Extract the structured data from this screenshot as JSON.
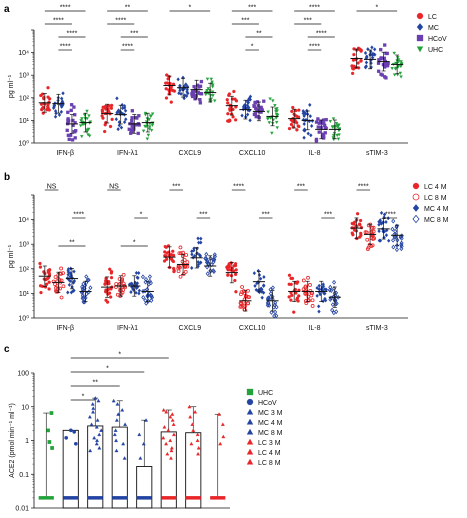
{
  "chart_data": [
    {
      "panel": "a",
      "type": "scatter",
      "ylabel": "pg ml⁻¹",
      "yscale": "log",
      "ylim": [
        1,
        100000
      ],
      "yticks": [
        "10⁰",
        "10¹",
        "10²",
        "10³",
        "10⁴"
      ],
      "categories": [
        "IFN-β",
        "IFN-λ1",
        "CXCL9",
        "CXCL10",
        "IL-8",
        "sTIM-3"
      ],
      "legend": "right",
      "series": [
        {
          "name": "LC",
          "color": "#e8262a",
          "marker": "circle",
          "values": [
            60,
            20,
            350,
            45,
            12,
            5500
          ]
        },
        {
          "name": "MC",
          "color": "#2444a3",
          "marker": "diamond",
          "values": [
            55,
            18,
            280,
            30,
            10,
            5000
          ]
        },
        {
          "name": "HCoV",
          "color": "#6a3fb0",
          "marker": "square",
          "values": [
            7,
            7,
            230,
            25,
            4,
            4000
          ]
        },
        {
          "name": "UHC",
          "color": "#22a23a",
          "marker": "triangle-down",
          "values": [
            8,
            8,
            170,
            15,
            4,
            3000
          ]
        }
      ],
      "significance": [
        {
          "label": "****",
          "group": 0,
          "pair": [
            0,
            3
          ]
        },
        {
          "label": "****",
          "group": 0,
          "pair": [
            0,
            2
          ]
        },
        {
          "label": "****",
          "group": 0,
          "pair": [
            1,
            3
          ]
        },
        {
          "label": "****",
          "group": 0,
          "pair": [
            1,
            2
          ]
        },
        {
          "label": "**",
          "group": 1,
          "pair": [
            0,
            3
          ]
        },
        {
          "label": "****",
          "group": 1,
          "pair": [
            0,
            2
          ]
        },
        {
          "label": "***",
          "group": 1,
          "pair": [
            1,
            3
          ]
        },
        {
          "label": "****",
          "group": 1,
          "pair": [
            1,
            2
          ]
        },
        {
          "label": "*",
          "group": 2,
          "pair": [
            0,
            3
          ]
        },
        {
          "label": "***",
          "group": 3,
          "pair": [
            0,
            3
          ]
        },
        {
          "label": "***",
          "group": 3,
          "pair": [
            0,
            2
          ]
        },
        {
          "label": "**",
          "group": 3,
          "pair": [
            1,
            3
          ]
        },
        {
          "label": "*",
          "group": 3,
          "pair": [
            1,
            2
          ]
        },
        {
          "label": "****",
          "group": 4,
          "pair": [
            0,
            3
          ]
        },
        {
          "label": "***",
          "group": 4,
          "pair": [
            0,
            2
          ]
        },
        {
          "label": "****",
          "group": 4,
          "pair": [
            1,
            3
          ]
        },
        {
          "label": "****",
          "group": 4,
          "pair": [
            1,
            2
          ]
        },
        {
          "label": "*",
          "group": 5,
          "pair": [
            0,
            3
          ]
        }
      ]
    },
    {
      "panel": "b",
      "type": "scatter",
      "ylabel": "pg ml⁻¹",
      "yscale": "log",
      "ylim": [
        1,
        100000
      ],
      "yticks": [
        "10⁰",
        "10¹",
        "10²",
        "10³",
        "10⁴"
      ],
      "categories": [
        "IFN-β",
        "IFN-λ1",
        "CXCL9",
        "CXCL10",
        "IL-8",
        "sTIM-3"
      ],
      "legend": "right",
      "series": [
        {
          "name": "LC 4 M",
          "color": "#e8262a",
          "marker": "circle",
          "values": [
            50,
            18,
            300,
            70,
            12,
            4500
          ]
        },
        {
          "name": "LC 8 M",
          "color": "#e8262a",
          "marker": "circle-open",
          "values": [
            28,
            20,
            150,
            5,
            12,
            2500
          ]
        },
        {
          "name": "MC 4 M",
          "color": "#2444a3",
          "marker": "diamond",
          "values": [
            40,
            20,
            280,
            30,
            12,
            4200
          ]
        },
        {
          "name": "MC 8 M",
          "color": "#2444a3",
          "marker": "diamond-open",
          "values": [
            12,
            12,
            130,
            5,
            7,
            2300
          ]
        }
      ],
      "significance": [
        {
          "label": "NS",
          "group": 0,
          "pair": [
            0,
            1
          ]
        },
        {
          "label": "****",
          "group": 0,
          "pair": [
            2,
            3
          ]
        },
        {
          "label": "**",
          "group": 0,
          "pair": [
            1,
            3
          ]
        },
        {
          "label": "NS",
          "group": 1,
          "pair": [
            0,
            1
          ]
        },
        {
          "label": "*",
          "group": 1,
          "pair": [
            2,
            3
          ]
        },
        {
          "label": "*",
          "group": 1,
          "pair": [
            1,
            3
          ]
        },
        {
          "label": "***",
          "group": 2,
          "pair": [
            0,
            1
          ]
        },
        {
          "label": "***",
          "group": 2,
          "pair": [
            2,
            3
          ]
        },
        {
          "label": "****",
          "group": 3,
          "pair": [
            0,
            1
          ]
        },
        {
          "label": "***",
          "group": 3,
          "pair": [
            2,
            3
          ]
        },
        {
          "label": "***",
          "group": 4,
          "pair": [
            0,
            1
          ]
        },
        {
          "label": "***",
          "group": 4,
          "pair": [
            2,
            3
          ]
        },
        {
          "label": "****",
          "group": 5,
          "pair": [
            0,
            1
          ]
        },
        {
          "label": "****",
          "group": 5,
          "pair": [
            2,
            3
          ]
        }
      ]
    },
    {
      "panel": "c",
      "type": "bar",
      "ylabel": "ACE2 (pmol min⁻¹ ml⁻¹)",
      "yscale": "log",
      "ylim": [
        0.01,
        100
      ],
      "yticks": [
        "0.01",
        "0.1",
        "1",
        "10",
        "100"
      ],
      "legend": "right",
      "categories": [
        "UHC",
        "HCoV",
        "MC 3 M",
        "MC 4 M",
        "MC 8 M",
        "LC 3 M",
        "LC 4 M",
        "LC 8 M"
      ],
      "series": [
        {
          "name": "UHC",
          "color": "#22a23a",
          "marker": "square",
          "median": 0.02,
          "upper": 0.02,
          "high_points": [
            6.5,
            2.0,
            0.9,
            0.6
          ]
        },
        {
          "name": "HCoV",
          "color": "#2444a3",
          "marker": "circle",
          "median": 0.02,
          "upper": 2.0,
          "high_points": [
            2.0,
            1.8,
            1.2,
            0.8
          ]
        },
        {
          "name": "MC 3 M",
          "color": "#2444a3",
          "marker": "triangle-up",
          "median": 0.02,
          "upper": 2.7,
          "high_points": [
            18,
            15,
            12,
            9,
            7,
            5,
            4,
            3,
            2.5,
            2,
            1.5,
            1.2,
            1,
            0.8,
            0.6,
            0.5
          ]
        },
        {
          "name": "MC 4 M",
          "color": "#2444a3",
          "marker": "triangle-up",
          "median": 0.02,
          "upper": 2.5,
          "high_points": [
            15,
            12,
            8,
            6,
            4,
            3,
            2,
            1.5,
            1,
            0.8,
            0.5,
            0.3
          ]
        },
        {
          "name": "MC 8 M",
          "color": "#2444a3",
          "marker": "triangle-up",
          "median": 0.02,
          "upper": 0.17,
          "high_points": [
            4,
            1.5,
            0.8,
            0.3
          ]
        },
        {
          "name": "LC 3 M",
          "color": "#e8262a",
          "marker": "triangle-up",
          "median": 0.02,
          "upper": 1.8,
          "high_points": [
            8,
            7,
            6,
            5,
            4,
            3,
            2.5,
            2,
            1.5,
            1.2,
            1,
            0.8,
            0.6,
            0.5,
            0.4,
            0.3
          ]
        },
        {
          "name": "LC 4 M",
          "color": "#e8262a",
          "marker": "triangle-up",
          "median": 0.02,
          "upper": 1.7,
          "high_points": [
            10,
            7,
            5,
            3,
            2,
            1.5,
            1,
            0.8,
            0.6,
            0.4
          ]
        },
        {
          "name": "LC 8 M",
          "color": "#e8262a",
          "marker": "triangle-up",
          "median": 0.02,
          "upper": 0.02,
          "high_points": [
            6,
            3,
            1.3,
            0.8
          ]
        }
      ],
      "significance": [
        {
          "label": "*",
          "pair": [
            1,
            5
          ]
        },
        {
          "label": "*",
          "pair": [
            1,
            4
          ]
        },
        {
          "label": "**",
          "pair": [
            1,
            3
          ]
        },
        {
          "label": "*",
          "pair": [
            1,
            2
          ]
        }
      ]
    }
  ]
}
